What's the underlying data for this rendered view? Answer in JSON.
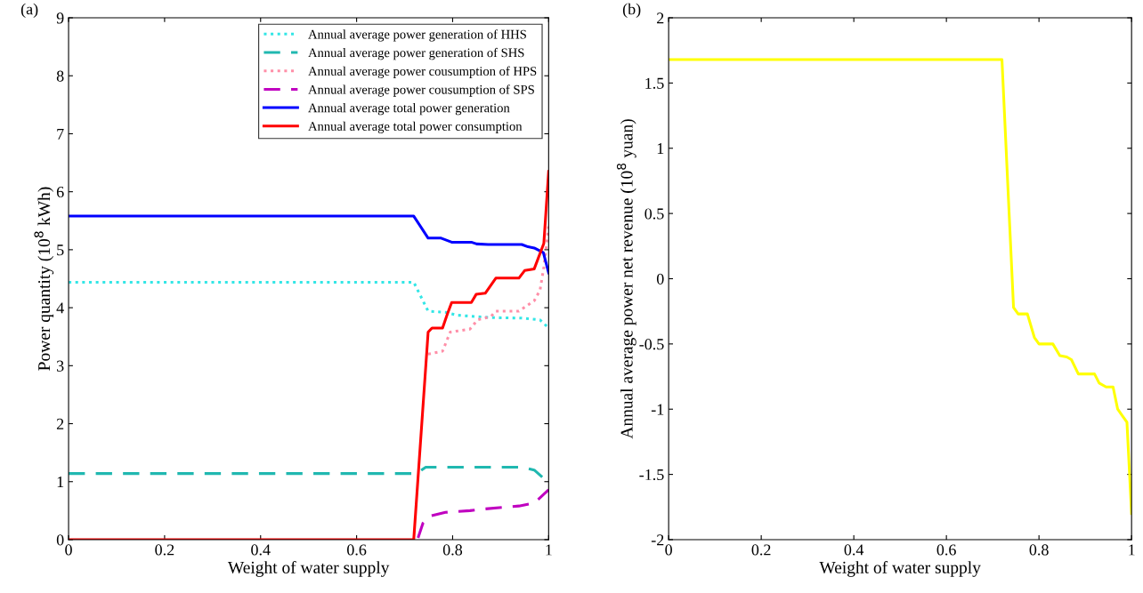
{
  "chart_data": [
    {
      "type": "line",
      "title": "(a)",
      "xlabel": "Weight of water supply",
      "ylabel": "Power quantity (10$^{8}$ kWh)",
      "xlim": [
        0,
        1
      ],
      "xticks": [
        0,
        0.2,
        0.4,
        0.6,
        0.8,
        1
      ],
      "ylim": [
        0,
        9
      ],
      "yticks": [
        0,
        1,
        2,
        3,
        4,
        5,
        6,
        7,
        8,
        9
      ],
      "grid": false,
      "legend": "top right",
      "series": [
        {
          "name": "Annual average power generation of HHS",
          "color": "#33e6e6",
          "line_style": "dotted",
          "x": [
            0,
            0.719,
            0.749,
            0.785,
            0.81,
            0.88,
            0.944,
            0.982,
            1.0
          ],
          "values": [
            4.44,
            4.44,
            3.94,
            3.92,
            3.87,
            3.83,
            3.82,
            3.79,
            3.65
          ]
        },
        {
          "name": "Annual average power generation of SHS",
          "color": "#20b8b0",
          "line_style": "dashed",
          "x": [
            0,
            0.725,
            0.744,
            0.944,
            0.97,
            1.0
          ],
          "values": [
            1.14,
            1.14,
            1.25,
            1.25,
            1.2,
            0.98
          ]
        },
        {
          "name": "Annual average power cousumption of HPS",
          "color": "#ff8fa8",
          "line_style": "dotted",
          "x": [
            0.749,
            0.779,
            0.795,
            0.836,
            0.852,
            0.88,
            0.89,
            0.938,
            0.97,
            0.982,
            0.99,
            1.0
          ],
          "values": [
            3.2,
            3.25,
            3.58,
            3.63,
            3.79,
            3.85,
            3.94,
            3.94,
            4.12,
            4.3,
            4.7,
            5.4
          ]
        },
        {
          "name": "Annual average power cousumption of SPS",
          "color": "#c000c0",
          "line_style": "dashed",
          "x": [
            0.728,
            0.738,
            0.754,
            0.785,
            0.836,
            0.868,
            0.938,
            0.97,
            1.0
          ],
          "values": [
            0.03,
            0.28,
            0.41,
            0.47,
            0.5,
            0.53,
            0.58,
            0.63,
            0.86
          ]
        },
        {
          "name": "Annual average total power generation",
          "color": "#0000ff",
          "line_style": "solid",
          "x": [
            0,
            0.719,
            0.749,
            0.776,
            0.798,
            0.839,
            0.85,
            0.874,
            0.944,
            0.957,
            0.97,
            0.989,
            1.0
          ],
          "values": [
            5.58,
            5.58,
            5.2,
            5.2,
            5.13,
            5.13,
            5.1,
            5.09,
            5.09,
            5.05,
            5.03,
            4.95,
            4.6
          ]
        },
        {
          "name": "Annual average total power consumption",
          "color": "#ff0000",
          "line_style": "solid",
          "x": [
            0,
            0.719,
            0.749,
            0.757,
            0.779,
            0.789,
            0.798,
            0.839,
            0.849,
            0.868,
            0.89,
            0.938,
            0.95,
            0.97,
            0.99,
            1.0
          ],
          "values": [
            0,
            0,
            3.58,
            3.65,
            3.65,
            3.89,
            4.09,
            4.09,
            4.23,
            4.25,
            4.51,
            4.51,
            4.64,
            4.67,
            5.11,
            6.35
          ]
        }
      ]
    },
    {
      "type": "line",
      "title": "(b)",
      "xlabel": "Weight of water supply",
      "ylabel": "Annual average power net revenue (10$^{8}$ yuan)",
      "xlim": [
        0,
        1
      ],
      "xticks": [
        0,
        0.2,
        0.4,
        0.6,
        0.8,
        1
      ],
      "ylim": [
        -2,
        2
      ],
      "yticks": [
        -2,
        -1.5,
        -1,
        -0.5,
        0,
        0.5,
        1,
        1.5,
        2
      ],
      "grid": false,
      "series": [
        {
          "color": "#ffff00",
          "line_style": "solid",
          "x": [
            0,
            0.72,
            0.745,
            0.755,
            0.775,
            0.79,
            0.8,
            0.83,
            0.845,
            0.86,
            0.87,
            0.885,
            0.92,
            0.93,
            0.945,
            0.96,
            0.97,
            0.98,
            0.99,
            1.0
          ],
          "values": [
            1.68,
            1.68,
            -0.22,
            -0.27,
            -0.27,
            -0.45,
            -0.5,
            -0.5,
            -0.59,
            -0.6,
            -0.62,
            -0.73,
            -0.73,
            -0.8,
            -0.83,
            -0.83,
            -1.0,
            -1.05,
            -1.1,
            -1.8
          ]
        }
      ]
    }
  ]
}
